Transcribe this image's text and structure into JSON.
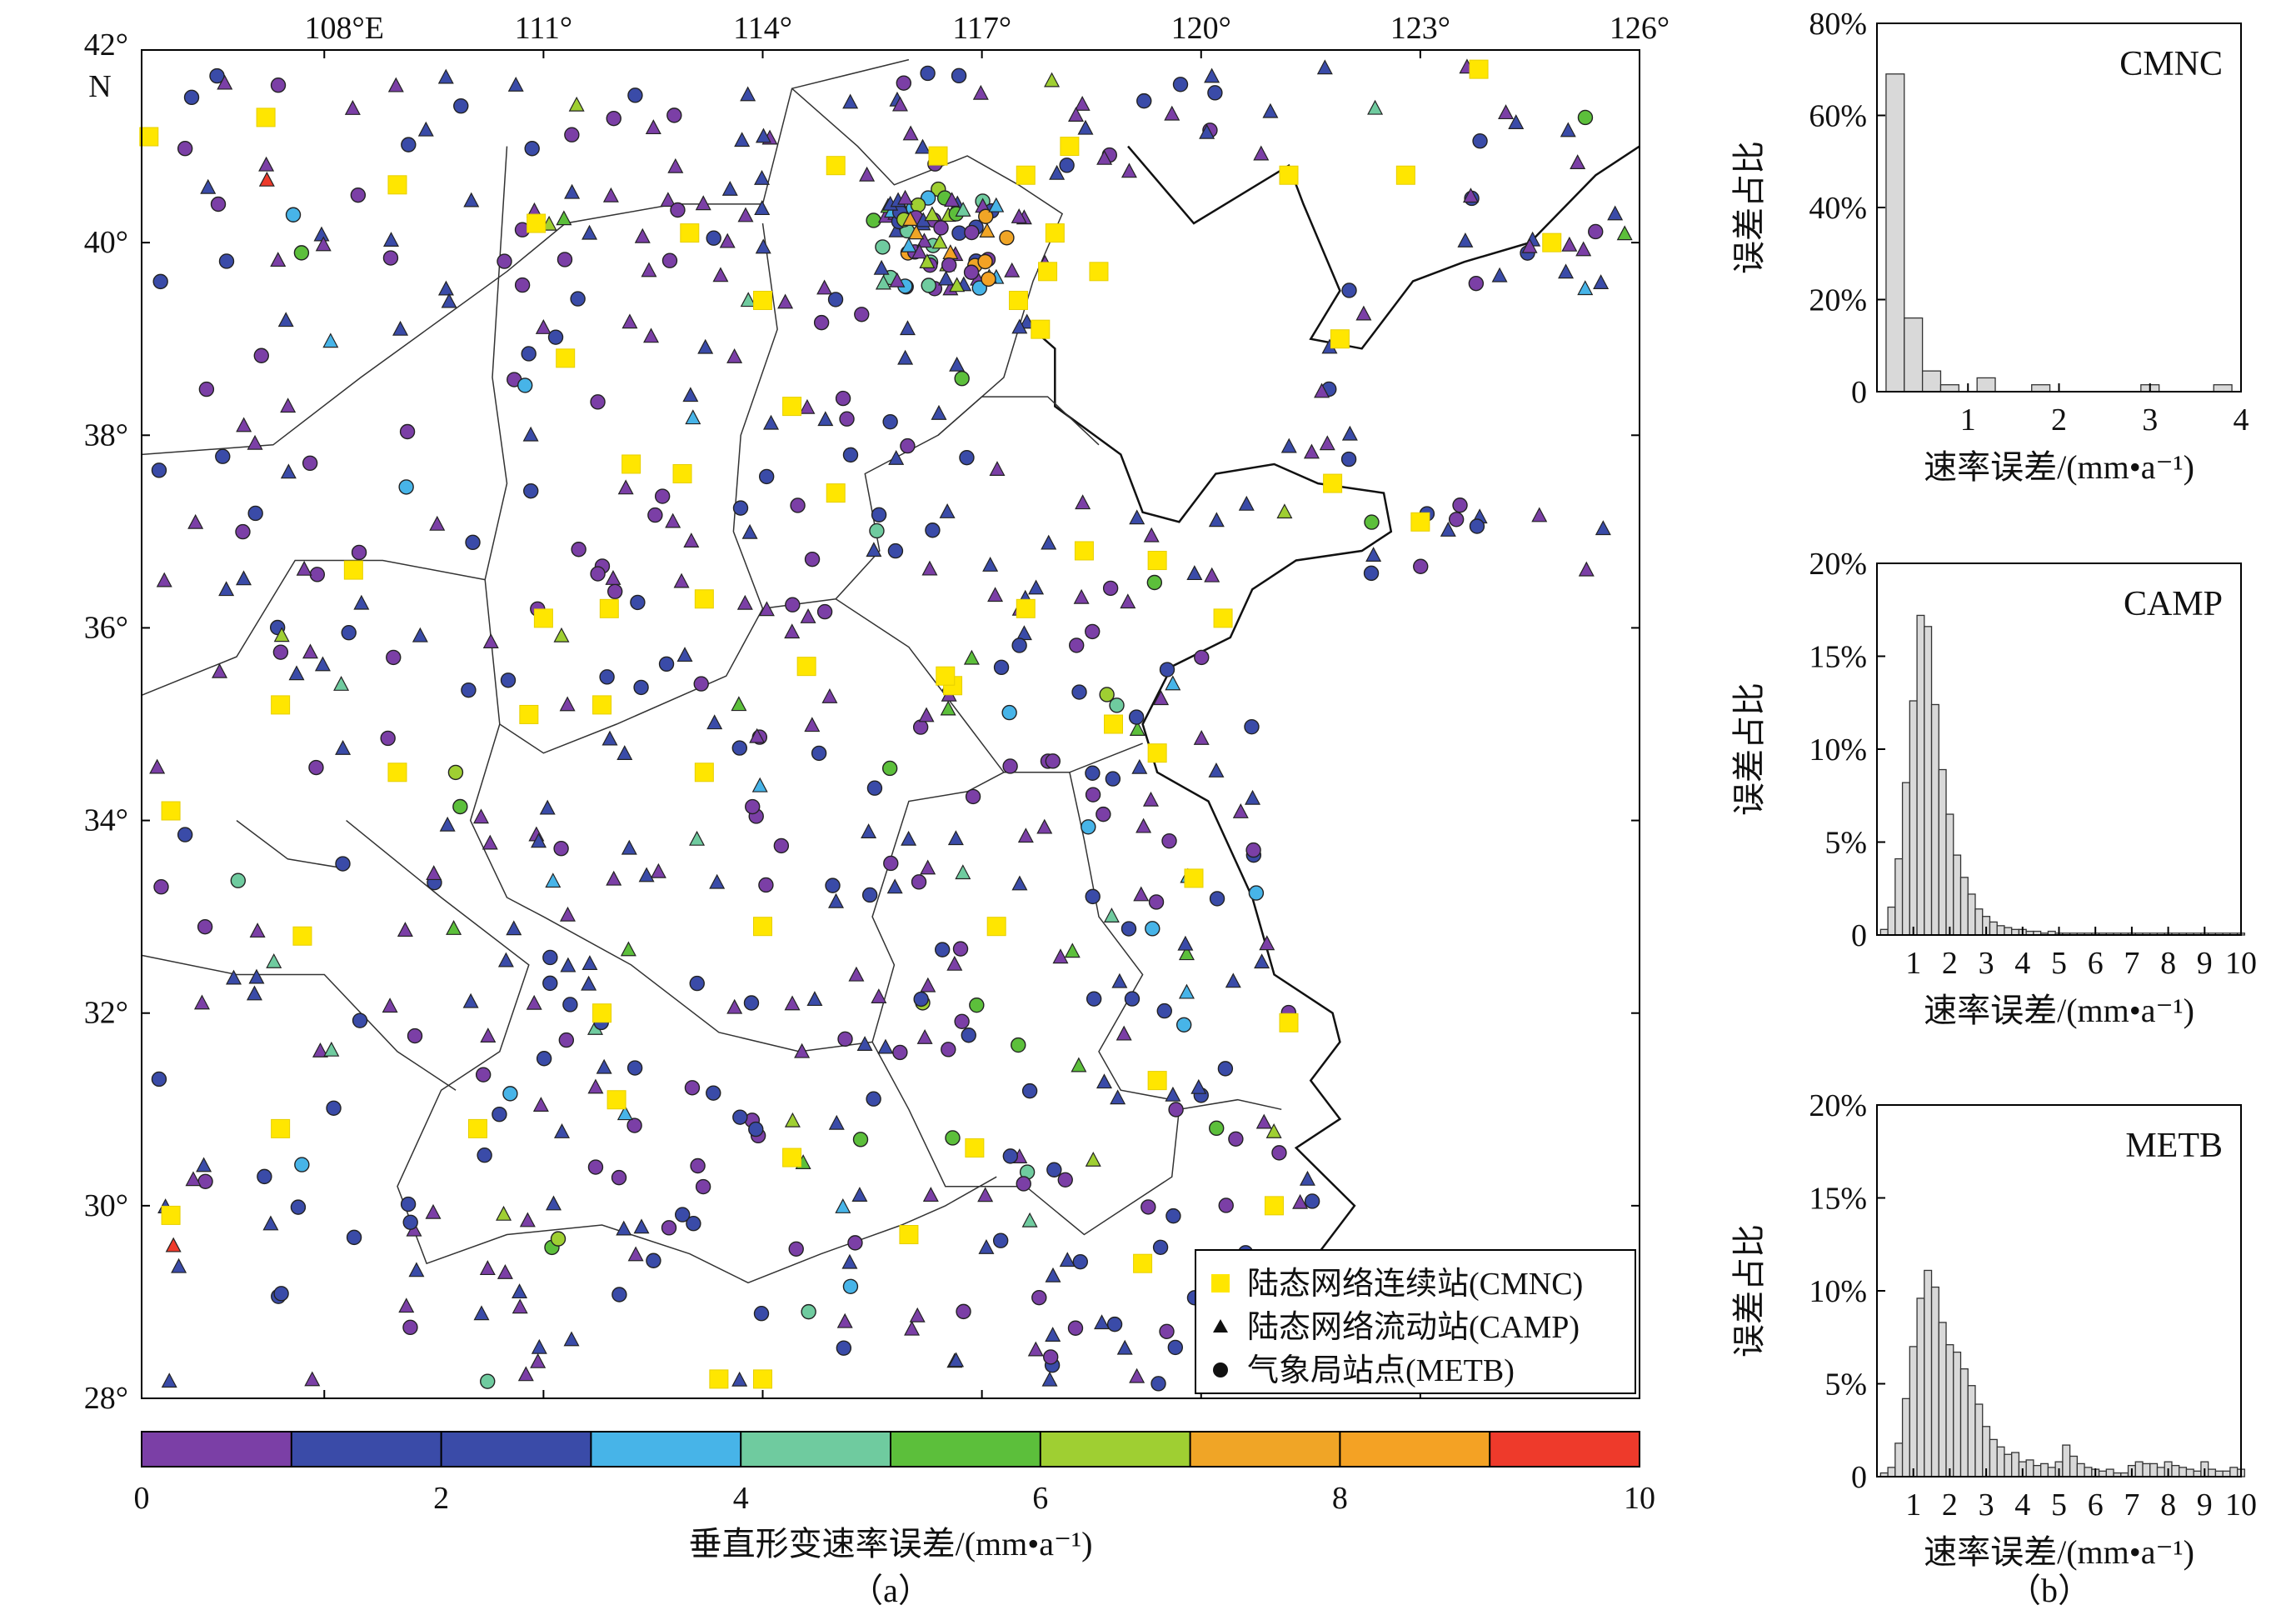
{
  "chart_data": [
    {
      "type": "scatter",
      "panel_label": "（a）",
      "description_kind": "map",
      "x_ticks": [
        "108°E",
        "111°",
        "114°",
        "117°",
        "120°",
        "123°",
        "126°"
      ],
      "y_ticks": [
        "42°",
        "40°",
        "38°",
        "36°",
        "34°",
        "32°",
        "30°",
        "28°"
      ],
      "y_top_extra": "N",
      "xlim": [
        105.5,
        126
      ],
      "ylim": [
        28,
        42
      ],
      "legend": [
        {
          "name": "陆态网络连续站(CMNC)",
          "marker": "square",
          "color": "#ffe600"
        },
        {
          "name": "陆态网络流动站(CAMP)",
          "marker": "triangle",
          "color": "#111111"
        },
        {
          "name": "气象局站点(METB)",
          "marker": "circle",
          "color": "#111111"
        }
      ],
      "colorbar": {
        "label": "垂直形变速率误差/(mm•a⁻¹)",
        "range": [
          0,
          10
        ],
        "ticks": [
          "0",
          "2",
          "4",
          "6",
          "8",
          "10"
        ],
        "colors": [
          "#7b3fa6",
          "#3a4ba8",
          "#3a4ba8",
          "#47b4e8",
          "#6fcb9f",
          "#5cbf3b",
          "#9fcf32",
          "#f0a526",
          "#f4a224",
          "#ee3a2b"
        ]
      },
      "cmnc_stations": [
        [
          105.6,
          41.1
        ],
        [
          107.2,
          41.3
        ],
        [
          109.0,
          40.6
        ],
        [
          110.9,
          40.2
        ],
        [
          113.0,
          40.1
        ],
        [
          115.0,
          40.8
        ],
        [
          116.4,
          40.9
        ],
        [
          117.6,
          40.7
        ],
        [
          118.2,
          41.0
        ],
        [
          121.2,
          40.7
        ],
        [
          122.8,
          40.7
        ],
        [
          123.8,
          41.8
        ],
        [
          124.8,
          40.0
        ],
        [
          114.0,
          39.4
        ],
        [
          117.5,
          39.4
        ],
        [
          117.8,
          39.1
        ],
        [
          118.6,
          39.7
        ],
        [
          117.9,
          39.7
        ],
        [
          118.0,
          40.1
        ],
        [
          121.9,
          39.0
        ],
        [
          111.3,
          38.8
        ],
        [
          114.4,
          38.3
        ],
        [
          115.0,
          37.4
        ],
        [
          112.2,
          37.7
        ],
        [
          112.9,
          37.6
        ],
        [
          108.4,
          36.6
        ],
        [
          111.0,
          36.1
        ],
        [
          111.9,
          36.2
        ],
        [
          113.2,
          36.3
        ],
        [
          114.6,
          35.6
        ],
        [
          116.6,
          35.4
        ],
        [
          117.6,
          36.2
        ],
        [
          118.4,
          36.8
        ],
        [
          119.4,
          36.7
        ],
        [
          120.3,
          36.1
        ],
        [
          121.8,
          37.5
        ],
        [
          123.0,
          37.1
        ],
        [
          107.4,
          35.2
        ],
        [
          110.8,
          35.1
        ],
        [
          111.8,
          35.2
        ],
        [
          113.2,
          34.5
        ],
        [
          116.5,
          35.5
        ],
        [
          118.8,
          35.0
        ],
        [
          119.4,
          34.7
        ],
        [
          105.9,
          34.1
        ],
        [
          109.0,
          34.5
        ],
        [
          119.9,
          33.4
        ],
        [
          107.7,
          32.8
        ],
        [
          114.0,
          32.9
        ],
        [
          117.2,
          32.9
        ],
        [
          111.8,
          32.0
        ],
        [
          121.2,
          31.9
        ],
        [
          119.4,
          31.3
        ],
        [
          107.4,
          30.8
        ],
        [
          110.1,
          30.8
        ],
        [
          112.0,
          31.1
        ],
        [
          114.4,
          30.5
        ],
        [
          116.9,
          30.6
        ],
        [
          121.0,
          30.0
        ],
        [
          105.9,
          29.9
        ],
        [
          116.0,
          29.7
        ],
        [
          119.2,
          29.4
        ],
        [
          113.4,
          28.2
        ],
        [
          114.0,
          28.2
        ]
      ],
      "distribution_note": "about 900 CAMP triangles and METB circles spread over the map; most errors 0-2 mm/a (purple/dark blue), some 3-10 mm/a near Beijing and central-east"
    },
    {
      "type": "bar",
      "panel_label": "（b）",
      "title": "CMNC",
      "xlabel": "速率误差/(mm•a⁻¹)",
      "ylabel": "误差占比",
      "x_ticks": [
        "1",
        "2",
        "3",
        "4"
      ],
      "y_ticks": [
        "0",
        "20%",
        "40%",
        "60%",
        "80%"
      ],
      "xlim": [
        0,
        4
      ],
      "ylim": [
        0,
        80
      ],
      "bin_width": 0.2,
      "bins_start": [
        0.1,
        0.3,
        0.5,
        0.7,
        0.9,
        1.1,
        1.3,
        1.5,
        1.7,
        1.9,
        2.1,
        2.3,
        2.5,
        2.7,
        2.9,
        3.1,
        3.3,
        3.5,
        3.7
      ],
      "values": [
        69,
        16,
        4.5,
        1.5,
        0,
        3,
        0,
        0,
        1.5,
        0,
        0,
        0,
        0,
        0,
        1.5,
        0,
        0,
        0,
        1.5
      ]
    },
    {
      "type": "bar",
      "title": "CAMP",
      "xlabel": "速率误差/(mm•a⁻¹)",
      "ylabel": "误差占比",
      "x_ticks": [
        "1",
        "2",
        "3",
        "4",
        "5",
        "6",
        "7",
        "8",
        "9",
        "10"
      ],
      "y_ticks": [
        "0",
        "5%",
        "10%",
        "15%",
        "20%"
      ],
      "xlim": [
        0,
        10
      ],
      "ylim": [
        0,
        20
      ],
      "bin_width": 0.2,
      "values": [
        0.3,
        1.5,
        4.1,
        8.2,
        12.6,
        17.2,
        16.6,
        12.4,
        8.9,
        6.5,
        4.3,
        3.1,
        2.2,
        1.4,
        1.0,
        0.7,
        0.5,
        0.4,
        0.3,
        0.3,
        0.2,
        0.2,
        0.1,
        0.2,
        0.1,
        0.1,
        0.1,
        0.1,
        0.1,
        0.1,
        0.1,
        0.1,
        0.1,
        0.1,
        0.1,
        0.1,
        0.1,
        0.1,
        0.1,
        0.1,
        0.1,
        0.1,
        0.1,
        0.1,
        0.1,
        0.1,
        0.1,
        0.1,
        0.1,
        0.1
      ]
    },
    {
      "type": "bar",
      "title": "METB",
      "xlabel": "速率误差/(mm•a⁻¹)",
      "ylabel": "误差占比",
      "x_ticks": [
        "1",
        "2",
        "3",
        "4",
        "5",
        "6",
        "7",
        "8",
        "9",
        "10"
      ],
      "y_ticks": [
        "0",
        "5%",
        "10%",
        "15%",
        "20%"
      ],
      "xlim": [
        0,
        10
      ],
      "ylim": [
        0,
        20
      ],
      "bin_width": 0.2,
      "values": [
        0.2,
        0.5,
        1.8,
        4.2,
        7.0,
        9.6,
        11.1,
        10.2,
        8.3,
        7.1,
        6.7,
        5.8,
        4.9,
        3.9,
        2.7,
        2.0,
        1.6,
        1.2,
        1.3,
        0.8,
        0.9,
        0.6,
        0.7,
        0.5,
        0.8,
        1.7,
        1.1,
        0.7,
        0.5,
        0.4,
        0.3,
        0.4,
        0.2,
        0.2,
        0.6,
        0.8,
        0.7,
        0.7,
        0.5,
        0.8,
        0.6,
        0.5,
        0.4,
        0.3,
        0.8,
        0.4,
        0.3,
        0.3,
        0.5,
        0.4
      ]
    }
  ]
}
